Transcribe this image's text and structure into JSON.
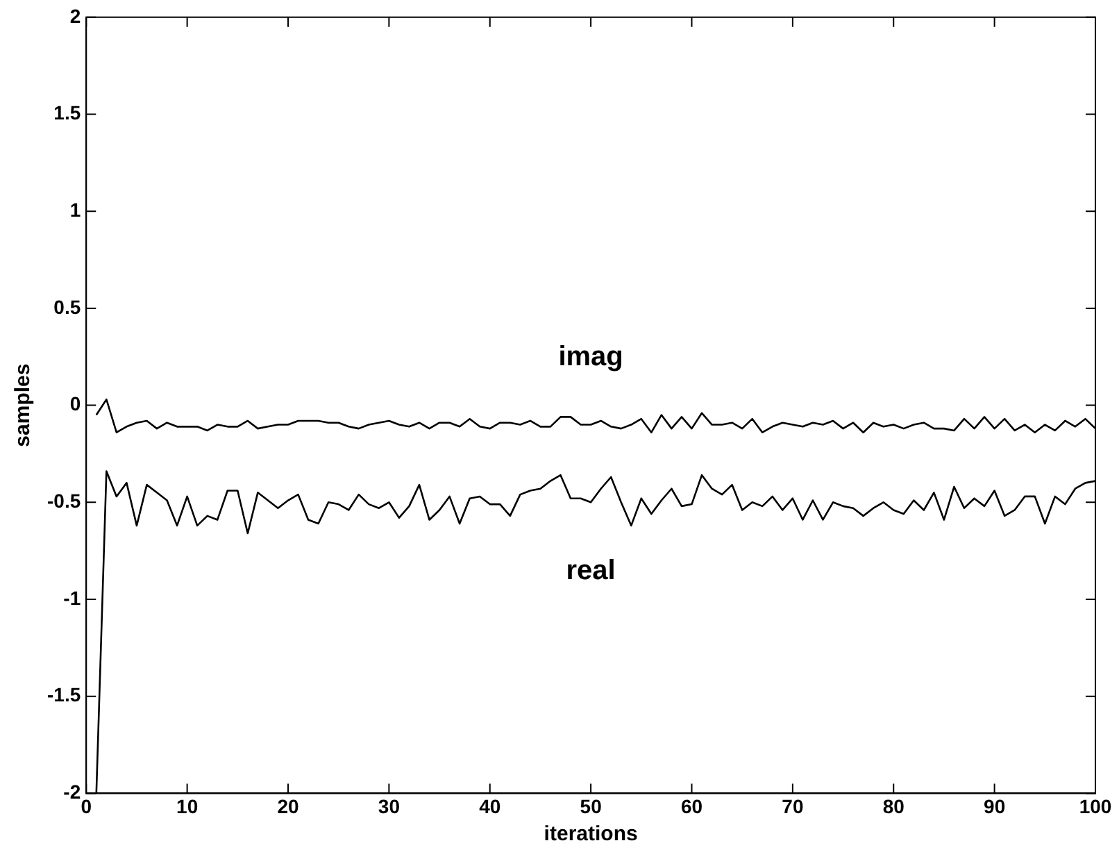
{
  "chart_data": {
    "type": "line",
    "xlabel": "iterations",
    "ylabel": "samples",
    "xlim": [
      0,
      100
    ],
    "ylim": [
      -2,
      2
    ],
    "xticks": [
      0,
      10,
      20,
      30,
      40,
      50,
      60,
      70,
      80,
      90,
      100
    ],
    "yticks": [
      -2,
      -1.5,
      -1,
      -0.5,
      0,
      0.5,
      1,
      1.5,
      2
    ],
    "x": [
      1,
      2,
      3,
      4,
      5,
      6,
      7,
      8,
      9,
      10,
      11,
      12,
      13,
      14,
      15,
      16,
      17,
      18,
      19,
      20,
      21,
      22,
      23,
      24,
      25,
      26,
      27,
      28,
      29,
      30,
      31,
      32,
      33,
      34,
      35,
      36,
      37,
      38,
      39,
      40,
      41,
      42,
      43,
      44,
      45,
      46,
      47,
      48,
      49,
      50,
      51,
      52,
      53,
      54,
      55,
      56,
      57,
      58,
      59,
      60,
      61,
      62,
      63,
      64,
      65,
      66,
      67,
      68,
      69,
      70,
      71,
      72,
      73,
      74,
      75,
      76,
      77,
      78,
      79,
      80,
      81,
      82,
      83,
      84,
      85,
      86,
      87,
      88,
      89,
      90,
      91,
      92,
      93,
      94,
      95,
      96,
      97,
      98,
      99,
      100
    ],
    "series": [
      {
        "name": "real",
        "color": "#000000",
        "values": [
          -2,
          -0.34,
          -0.47,
          -0.4,
          -0.62,
          -0.41,
          -0.45,
          -0.49,
          -0.62,
          -0.47,
          -0.62,
          -0.57,
          -0.59,
          -0.44,
          -0.44,
          -0.66,
          -0.45,
          -0.49,
          -0.53,
          -0.49,
          -0.46,
          -0.59,
          -0.61,
          -0.5,
          -0.51,
          -0.54,
          -0.46,
          -0.51,
          -0.53,
          -0.5,
          -0.58,
          -0.52,
          -0.41,
          -0.59,
          -0.54,
          -0.47,
          -0.61,
          -0.48,
          -0.47,
          -0.51,
          -0.51,
          -0.57,
          -0.46,
          -0.44,
          -0.43,
          -0.39,
          -0.36,
          -0.48,
          -0.48,
          -0.5,
          -0.43,
          -0.37,
          -0.5,
          -0.62,
          -0.48,
          -0.56,
          -0.49,
          -0.43,
          -0.52,
          -0.51,
          -0.36,
          -0.43,
          -0.46,
          -0.41,
          -0.54,
          -0.5,
          -0.52,
          -0.47,
          -0.54,
          -0.48,
          -0.59,
          -0.49,
          -0.59,
          -0.5,
          -0.52,
          -0.53,
          -0.57,
          -0.53,
          -0.5,
          -0.54,
          -0.56,
          -0.49,
          -0.54,
          -0.45,
          -0.59,
          -0.42,
          -0.53,
          -0.48,
          -0.52,
          -0.44,
          -0.57,
          -0.54,
          -0.47,
          -0.47,
          -0.61,
          -0.47,
          -0.51,
          -0.43,
          -0.4,
          -0.39
        ]
      },
      {
        "name": "imag",
        "color": "#000000",
        "values": [
          -0.05,
          0.03,
          -0.14,
          -0.11,
          -0.09,
          -0.08,
          -0.12,
          -0.09,
          -0.11,
          -0.11,
          -0.11,
          -0.13,
          -0.1,
          -0.11,
          -0.11,
          -0.08,
          -0.12,
          -0.11,
          -0.1,
          -0.1,
          -0.08,
          -0.08,
          -0.08,
          -0.09,
          -0.09,
          -0.11,
          -0.12,
          -0.1,
          -0.09,
          -0.08,
          -0.1,
          -0.11,
          -0.09,
          -0.12,
          -0.09,
          -0.09,
          -0.11,
          -0.07,
          -0.11,
          -0.12,
          -0.09,
          -0.09,
          -0.1,
          -0.08,
          -0.11,
          -0.11,
          -0.06,
          -0.06,
          -0.1,
          -0.1,
          -0.08,
          -0.11,
          -0.12,
          -0.1,
          -0.07,
          -0.14,
          -0.05,
          -0.12,
          -0.06,
          -0.12,
          -0.04,
          -0.1,
          -0.1,
          -0.09,
          -0.12,
          -0.07,
          -0.14,
          -0.11,
          -0.09,
          -0.1,
          -0.11,
          -0.09,
          -0.1,
          -0.08,
          -0.12,
          -0.09,
          -0.14,
          -0.09,
          -0.11,
          -0.1,
          -0.12,
          -0.1,
          -0.09,
          -0.12,
          -0.12,
          -0.13,
          -0.07,
          -0.12,
          -0.06,
          -0.12,
          -0.07,
          -0.13,
          -0.1,
          -0.14,
          -0.1,
          -0.13,
          -0.08,
          -0.11,
          -0.07,
          -0.12
        ]
      }
    ]
  }
}
